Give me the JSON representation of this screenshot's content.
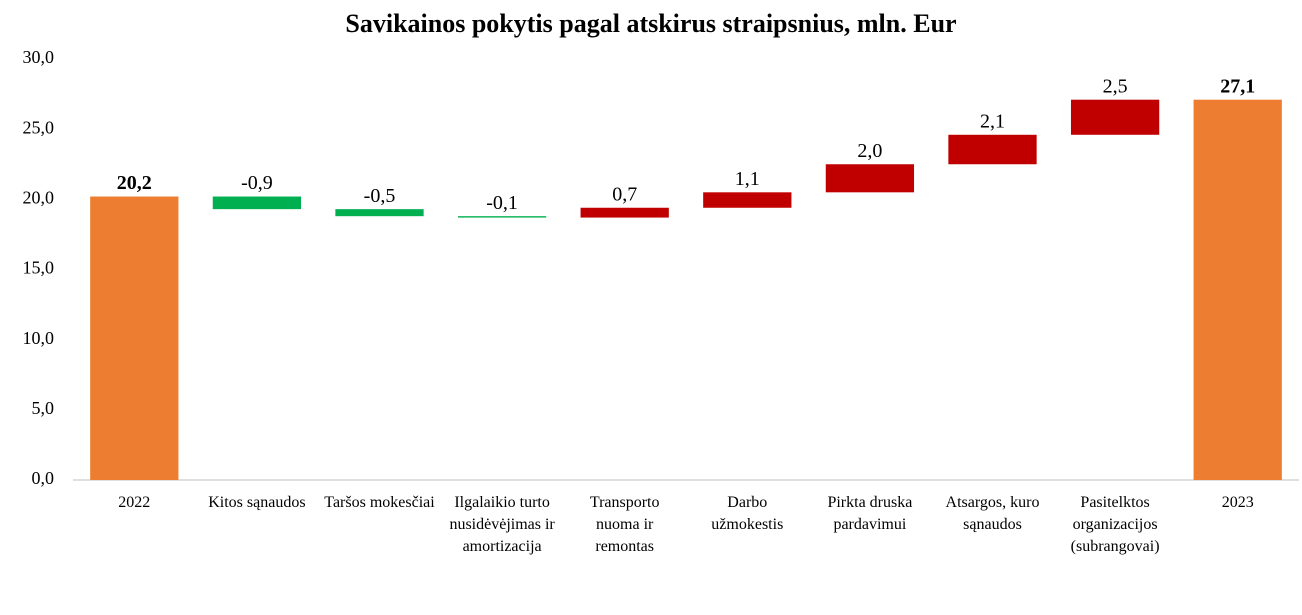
{
  "chart_data": {
    "type": "waterfall",
    "title": "Savikainos pokytis pagal atskirus straipsnius, mln. Eur",
    "categories": [
      "2022",
      "Kitos sąnaudos",
      "Taršos mokesčiai",
      "Ilgalaikio turto nusidėvėjimas ir amortizacija",
      "Transporto nuoma ir remontas",
      "Darbo užmokestis",
      "Pirkta druska pardavimui",
      "Atsargos, kuro sąnaudos",
      "Pasitelktos organizacijos (subrangovai)",
      "2023"
    ],
    "values": [
      20.2,
      -0.9,
      -0.5,
      -0.1,
      0.7,
      1.1,
      2.0,
      2.1,
      2.5,
      27.1
    ],
    "value_labels": [
      "20,2",
      "-0,9",
      "-0,5",
      "-0,1",
      "0,7",
      "1,1",
      "2,0",
      "2,1",
      "2,5",
      "27,1"
    ],
    "measure": [
      "total",
      "relative",
      "relative",
      "relative",
      "relative",
      "relative",
      "relative",
      "relative",
      "relative",
      "total"
    ],
    "colors": {
      "total": "#ed7d31",
      "increase": "#c00000",
      "decrease": "#00b050"
    },
    "ylim": [
      0,
      30
    ],
    "yticks": [
      {
        "value": 0,
        "label": "0,0"
      },
      {
        "value": 5,
        "label": "5,0"
      },
      {
        "value": 10,
        "label": "10,0"
      },
      {
        "value": 15,
        "label": "15,0"
      },
      {
        "value": 20,
        "label": "20,0"
      },
      {
        "value": 25,
        "label": "25,0"
      },
      {
        "value": 30,
        "label": "30,0"
      }
    ],
    "grid": false
  }
}
